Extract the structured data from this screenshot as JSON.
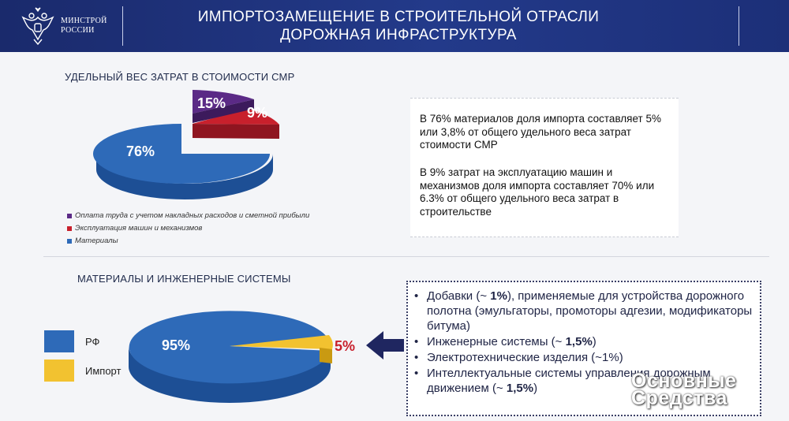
{
  "header": {
    "logo_line1": "МИНСТРОЙ",
    "logo_line2": "РОССИИ",
    "emblem_icon": "double-headed-eagle-icon",
    "title_line1": "ИМПОРТОЗАМЕЩЕНИЕ В СТРОИТЕЛЬНОЙ ОТРАСЛИ",
    "title_line2": "ДОРОЖНАЯ ИНФРАСТРУКТУРА"
  },
  "section1": {
    "heading": "УДЕЛЬНЫЙ ВЕС ЗАТРАТ В СТОИМОСТИ СМР",
    "slices": [
      {
        "label": "15%",
        "color": "#5b2a86"
      },
      {
        "label": "9%",
        "color": "#c8202c"
      },
      {
        "label": "76%",
        "color": "#2e6ab8"
      }
    ],
    "legend": [
      {
        "text": "Оплата труда с учетом накладных расходов и сметной прибыли",
        "color": "#5b2a86"
      },
      {
        "text": "Эксплуатация машин и механизмов",
        "color": "#c8202c"
      },
      {
        "text": "Материалы",
        "color": "#2e6ab8"
      }
    ],
    "info_p1": "В 76% материалов  доля импорта составляет 5% или 3,8% от общего удельного веса затрат стоимости СМР",
    "info_p2": "В 9% затрат на эксплуатацию машин и механизмов доля импорта составляет  70% или 6.3% от общего удельного веса затрат в строительстве"
  },
  "section2": {
    "heading": "МАТЕРИАЛЫ И ИНЖЕНЕРНЫЕ СИСТЕМЫ",
    "slices": [
      {
        "label": "95%",
        "color": "#2e6ab8"
      },
      {
        "label": "5%",
        "color": "#f2c230"
      }
    ],
    "legend": [
      {
        "text": "РФ",
        "color": "#2e6ab8"
      },
      {
        "text": "Импорт",
        "color": "#f2c230"
      }
    ],
    "arrow_icon": "arrow-left-icon",
    "bullets": [
      {
        "pre": "Добавки (~ ",
        "bold": "1%",
        "post": "), применяемые для устройства дорожного полотна (эмульгаторы, промоторы адгезии, модификаторы битума)"
      },
      {
        "pre": "Инженерные системы (~ ",
        "bold": "1,5%",
        "post": ")"
      },
      {
        "pre": "Электротехнические  изделия (~1%)",
        "bold": "",
        "post": ""
      },
      {
        "pre": "Интеллектуальные системы управления дорожным движением (~ ",
        "bold": "1,5%",
        "post": ")"
      }
    ]
  },
  "watermark": {
    "line1": "Основные",
    "line2": "Средства"
  },
  "colors": {
    "header_bg": "#1f3182",
    "accent_blue": "#2e6ab8",
    "purple": "#5b2a86",
    "red": "#c8202c",
    "yellow": "#f2c230"
  }
}
